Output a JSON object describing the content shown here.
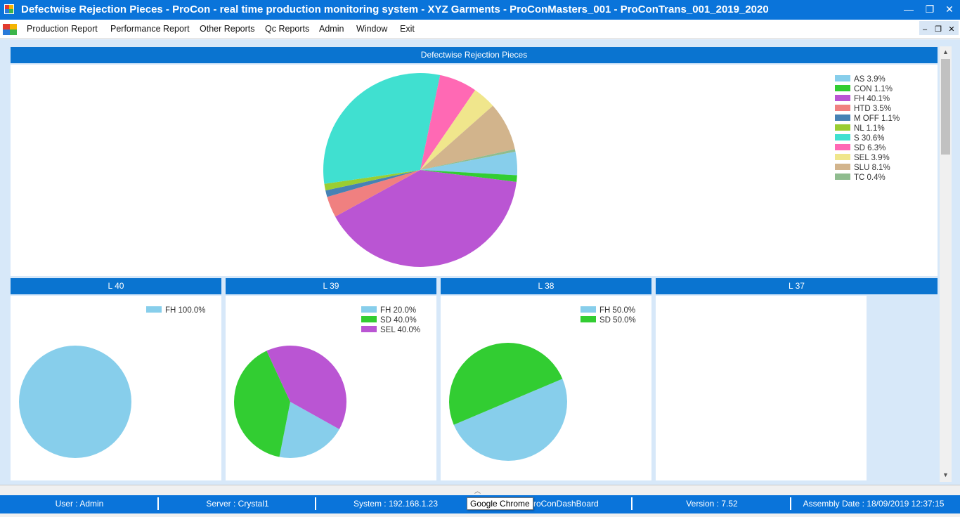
{
  "window": {
    "title": "Defectwise Rejection Pieces - ProCon - real time production monitoring system - XYZ Garments - ProConMasters_001 - ProConTrans_001_2019_2020",
    "minimize": "—",
    "restore": "❐",
    "close": "✕"
  },
  "menu": {
    "items": [
      "Production Report",
      "Performance Report",
      "Other Reports",
      "Qc Reports",
      "Admin",
      "Window",
      "Exit"
    ],
    "mdi_minimize": "–",
    "mdi_restore": "❐",
    "mdi_close": "✕"
  },
  "colors": {
    "titlebar": "#0a74da",
    "panel_header": "#0a74d0",
    "workspace": "#d7e8f9"
  },
  "main_panel": {
    "title": "Defectwise Rejection Pieces"
  },
  "line_panels": [
    {
      "title": "L 40"
    },
    {
      "title": "L 39"
    },
    {
      "title": "L 38"
    },
    {
      "title": "L 37"
    }
  ],
  "chart_data": [
    {
      "type": "pie",
      "title": "Defectwise Rejection Pieces",
      "legend_position": "top-right",
      "labels": [
        "AS 3.9%",
        "CON 1.1%",
        "FH 40.1%",
        "HTD 3.5%",
        "M OFF 1.1%",
        "NL 1.1%",
        "S 30.6%",
        "SD 6.3%",
        "SEL 3.9%",
        "SLU 8.1%",
        "TC 0.4%"
      ],
      "values": [
        3.9,
        1.1,
        40.1,
        3.5,
        1.1,
        1.1,
        30.6,
        6.3,
        3.9,
        8.1,
        0.4
      ],
      "colors": [
        "#87ceeb",
        "#32cd32",
        "#ba55d3",
        "#f08080",
        "#4682b4",
        "#9acd32",
        "#40e0d0",
        "#ff69b4",
        "#f0e68c",
        "#d2b48c",
        "#8fbc8f"
      ]
    },
    {
      "type": "pie",
      "title": "L 40",
      "legend_position": "top-right",
      "labels": [
        "FH 100.0%"
      ],
      "values": [
        100.0
      ],
      "colors": [
        "#87ceeb"
      ]
    },
    {
      "type": "pie",
      "title": "L 39",
      "legend_position": "top-right",
      "labels": [
        "FH 20.0%",
        "SD 40.0%",
        "SEL 40.0%"
      ],
      "values": [
        20.0,
        40.0,
        40.0
      ],
      "colors": [
        "#87ceeb",
        "#32cd32",
        "#ba55d3"
      ]
    },
    {
      "type": "pie",
      "title": "L 38",
      "legend_position": "top-right",
      "labels": [
        "FH 50.0%",
        "SD 50.0%"
      ],
      "values": [
        50.0,
        50.0
      ],
      "colors": [
        "#87ceeb",
        "#32cd32"
      ]
    },
    {
      "type": "pie",
      "title": "L 37",
      "legend_position": "none",
      "labels": [],
      "values": [],
      "colors": []
    }
  ],
  "status": {
    "user": "User : Admin",
    "server": "Server : Crystal1",
    "system": "System : 192.168.1.23",
    "name": "me : ProConDashBoard",
    "version": "Version : 7.52",
    "assembly": "Assembly Date : 18/09/2019 12:37:15"
  },
  "tooltip": "Google Chrome"
}
